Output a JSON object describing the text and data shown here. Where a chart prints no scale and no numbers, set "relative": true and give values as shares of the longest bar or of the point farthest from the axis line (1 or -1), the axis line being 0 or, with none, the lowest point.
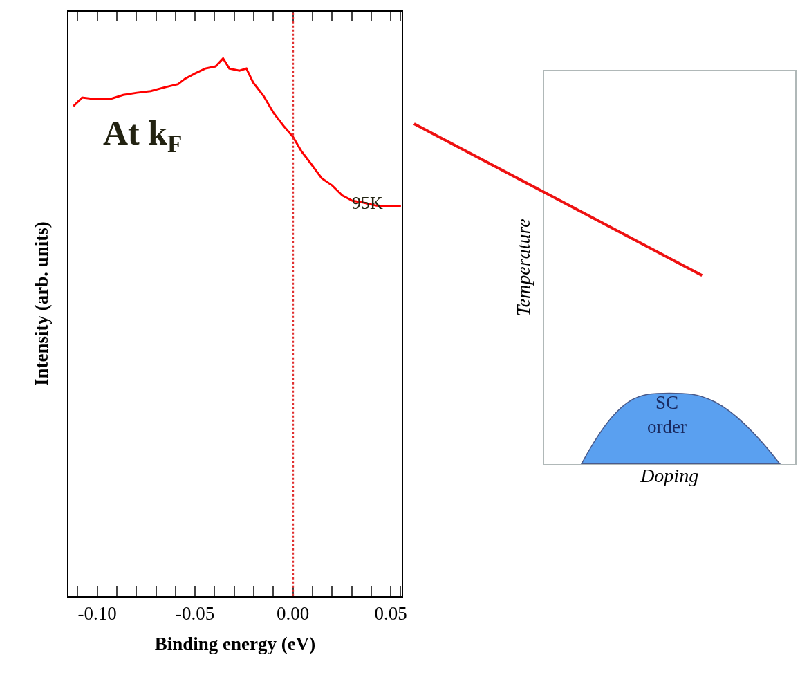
{
  "chart_data": [
    {
      "type": "line",
      "xlabel": "Binding energy (eV)",
      "ylabel": "Intensity (arb. units)",
      "relative": true,
      "x": [
        -0.1122,
        -0.1077,
        -0.1007,
        -0.0937,
        -0.0867,
        -0.0797,
        -0.0727,
        -0.0657,
        -0.0587,
        -0.0552,
        -0.05,
        -0.0448,
        -0.0395,
        -0.0357,
        -0.0325,
        -0.0273,
        -0.0238,
        -0.0203,
        -0.015,
        -0.0098,
        -0.0045,
        0,
        0.0042,
        0.0094,
        0.0147,
        0.0199,
        0.0252,
        0.0304,
        0.0357,
        0.0427,
        0.0497,
        0.0552
      ],
      "series": [
        {
          "color": "#ff0000",
          "values": [
            0.911,
            0.927,
            0.924,
            0.924,
            0.932,
            0.936,
            0.939,
            0.946,
            0.952,
            0.962,
            0.972,
            0.981,
            0.985,
            1.0,
            0.981,
            0.977,
            0.981,
            0.955,
            0.93,
            0.898,
            0.873,
            0.854,
            0.828,
            0.803,
            0.777,
            0.764,
            0.745,
            0.735,
            0.732,
            0.726,
            0.725,
            0.725
          ]
        }
      ],
      "xlim": [
        -0.1147,
        0.0556
      ],
      "xticks": [
        {
          "value": -0.11,
          "label": null
        },
        {
          "value": -0.1,
          "label": "-0.10"
        },
        {
          "value": -0.09,
          "label": null
        },
        {
          "value": -0.08,
          "label": null
        },
        {
          "value": -0.07,
          "label": null
        },
        {
          "value": -0.06,
          "label": null
        },
        -0.05,
        {
          "value": -0.04,
          "label": null
        },
        {
          "value": -0.03,
          "label": null
        },
        {
          "value": -0.02,
          "label": null
        },
        {
          "value": -0.01,
          "label": null
        },
        {
          "value": 0,
          "label": "0.00"
        },
        {
          "value": 0.01,
          "label": null
        },
        {
          "value": 0.02,
          "label": null
        },
        {
          "value": 0.03,
          "label": null
        },
        {
          "value": 0.04,
          "label": null
        },
        0.05,
        {
          "value": 0.055,
          "label": null
        }
      ],
      "ref_lines": [
        {
          "axis": "x",
          "value": 0,
          "color": "#e03030",
          "line_style": "dotted"
        }
      ],
      "annotations": [
        "At k$_{F}$",
        "95K"
      ],
      "marker": "none",
      "line_style": "solid",
      "tick_labels": "x"
    },
    {
      "type": "other",
      "xlabel": "Doping",
      "ylabel": "Temperature",
      "annotations": [
        "SC\norder"
      ]
    }
  ]
}
